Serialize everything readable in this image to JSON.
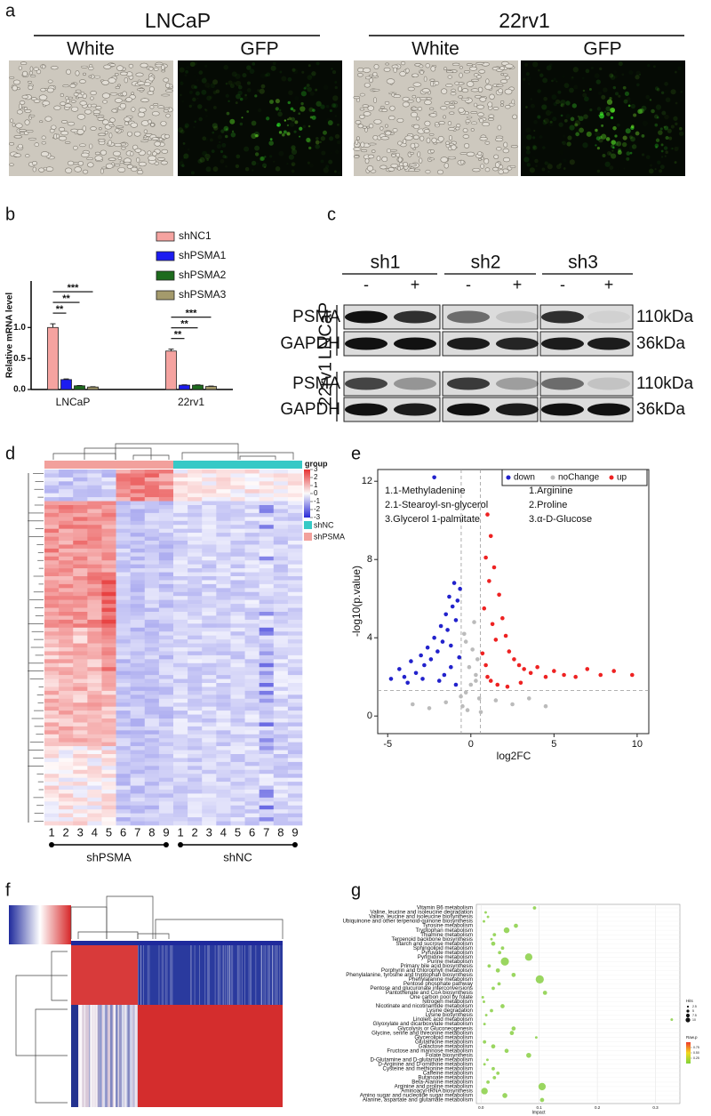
{
  "panels": {
    "a": {
      "letter": "a",
      "cell_lines": [
        "LNCaP",
        "22rv1"
      ],
      "channels": [
        "White",
        "GFP",
        "White",
        "GFP"
      ]
    },
    "c": {
      "letter": "c",
      "groups": [
        "sh1",
        "sh2",
        "sh3"
      ],
      "treatments": [
        "-",
        "+",
        "-",
        "+",
        "-",
        "+"
      ],
      "proteins": [
        "PSMA",
        "GAPDH",
        "PSMA",
        "GAPDH"
      ],
      "cell_lines": [
        "LNCaP",
        "22rv1"
      ],
      "sizes": [
        "110kDa",
        "36kDa",
        "110kDa",
        "36kDa"
      ]
    },
    "d": {
      "letter": "d",
      "legend_title": "group",
      "legend_ticks": [
        3,
        2,
        1,
        0,
        -1,
        -2,
        -3
      ],
      "groups": [
        {
          "name": "shNC",
          "color": "#36c9c6"
        },
        {
          "name": "shPSMA",
          "color": "#f2a09c"
        }
      ],
      "column_groups": [
        {
          "name": "shPSMA",
          "columns": [
            1,
            2,
            3,
            4,
            5,
            6,
            7,
            8,
            9
          ]
        },
        {
          "name": "shNC",
          "columns": [
            1,
            2,
            3,
            4,
            5,
            6,
            7,
            8,
            9
          ]
        }
      ]
    },
    "f": {
      "letter": "f"
    }
  },
  "chart_data": [
    {
      "type": "bar",
      "panel_label": "b",
      "ylabel": "Relative mRNA level",
      "categories": [
        "LNCaP",
        "22rv1"
      ],
      "series": [
        {
          "name": "shNC1",
          "color": "#f5a3a0",
          "values": [
            1.0,
            0.62
          ],
          "errors": [
            0.06,
            0.03
          ]
        },
        {
          "name": "shPSMA1",
          "color": "#1c1cf0",
          "values": [
            0.16,
            0.07
          ],
          "errors": [
            0.01,
            0.005
          ]
        },
        {
          "name": "shPSMA2",
          "color": "#1d6b1d",
          "values": [
            0.06,
            0.07
          ],
          "errors": [
            0.005,
            0.005
          ]
        },
        {
          "name": "shPSMA3",
          "color": "#a49a6c",
          "values": [
            0.04,
            0.05
          ],
          "errors": [
            0.005,
            0.005
          ]
        }
      ],
      "significance": [
        [
          "**",
          "**",
          "***"
        ],
        [
          "**",
          "**",
          "***"
        ]
      ],
      "ylim": [
        0,
        1.75
      ],
      "yticks": [
        {
          "value": 0,
          "label": "0.0"
        },
        0.5,
        {
          "value": 1,
          "label": "1.0"
        }
      ]
    },
    {
      "type": "scatter",
      "panel_label": "e",
      "xlabel": "log2FC",
      "ylabel": "-log10(p.value)",
      "xlim": [
        -5.6,
        10.7
      ],
      "ylim": [
        -0.9,
        12.6
      ],
      "xticks": [
        -5,
        0,
        5,
        10
      ],
      "yticks": [
        0,
        4,
        8,
        12
      ],
      "cutoff_x": [
        -0.58,
        0.58
      ],
      "cutoff_y": 1.3,
      "annotations_left": [
        "1.1-Methyladenine",
        "2.1-Stearoyl-sn-glycerol",
        "3.Glycerol 1-palmitate"
      ],
      "annotations_right": [
        "1.Arginine",
        "2.Proline",
        "3.α-D-Glucose"
      ],
      "series": [
        {
          "name": "down",
          "color": "#2222cc",
          "x": [
            -4.8,
            -4.3,
            -4.0,
            -3.6,
            -3.3,
            -3.0,
            -2.8,
            -2.6,
            -2.4,
            -2.2,
            -2.0,
            -1.8,
            -1.7,
            -1.5,
            -1.4,
            -1.3,
            -1.2,
            -1.1,
            -1.0,
            -0.9,
            -0.8,
            -0.7,
            -0.65,
            -2.2,
            -1.6,
            -1.2,
            -0.9,
            -3.8,
            -2.9,
            -1.9
          ],
          "y": [
            1.9,
            2.4,
            2.0,
            2.8,
            2.2,
            3.1,
            2.6,
            3.5,
            2.9,
            4.0,
            3.3,
            4.6,
            3.8,
            5.2,
            4.4,
            6.1,
            3.6,
            5.6,
            6.8,
            4.9,
            5.9,
            3.0,
            6.5,
            12.2,
            2.1,
            2.5,
            1.6,
            1.7,
            1.9,
            1.8
          ]
        },
        {
          "name": "noChange",
          "color": "#bbbbbb",
          "x": [
            -0.5,
            -0.3,
            -0.1,
            0.1,
            0.3,
            0.5,
            -0.4,
            0.2,
            0.4,
            -0.2,
            1.5,
            2.5,
            -1.5,
            -2.5,
            3.5,
            -0.6,
            0.6,
            0,
            -0.3,
            0.3,
            4.5,
            -3.5
          ],
          "y": [
            0.5,
            1.2,
            2.5,
            3.4,
            1.8,
            0.9,
            4.2,
            4.8,
            2.9,
            0.3,
            0.8,
            0.6,
            0.7,
            0.4,
            0.9,
            1.0,
            0.2,
            1.6,
            3.8,
            2.1,
            0.5,
            0.6
          ]
        },
        {
          "name": "up",
          "color": "#ee2222",
          "x": [
            0.7,
            0.8,
            0.9,
            1.0,
            1.1,
            1.2,
            1.3,
            1.4,
            1.5,
            1.7,
            1.9,
            2.1,
            2.3,
            2.6,
            2.9,
            3.2,
            3.6,
            4.0,
            4.5,
            5.0,
            5.6,
            6.3,
            7.0,
            7.8,
            8.6,
            9.7,
            1.0,
            1.6,
            2.2,
            0.9,
            1.2,
            3.0
          ],
          "y": [
            3.2,
            5.5,
            8.1,
            10.3,
            6.9,
            9.2,
            4.7,
            7.6,
            3.9,
            6.2,
            5.0,
            4.1,
            3.3,
            2.9,
            2.6,
            2.4,
            2.2,
            2.5,
            2.0,
            2.3,
            2.1,
            2.0,
            2.4,
            2.1,
            2.3,
            2.1,
            2.0,
            1.6,
            1.5,
            2.6,
            1.8,
            1.7
          ]
        }
      ]
    },
    {
      "type": "dot",
      "panel_label": "g",
      "xlabel": "Impact",
      "color": "#8fd14f",
      "categories": [
        "Vitamin B6 metabolism",
        "Valine, leucine and isoleucine degradation",
        "Valine, leucine and isoleucine biosynthesis",
        "Ubiquinone  and other terpenoid-quinone biosynthesis",
        "Tyrosine metabolism",
        "Tryptophan metabolism",
        "Thiamine metabolism",
        "Terpenoid backbone biosynthesis",
        "Starch and sucrose metabolism",
        "Sphingolipid metabolism",
        "Pyruvate metabolism",
        "Pyrimidine metabolism",
        "Purine metabolism",
        "Primary bile acid biosynthesis",
        "Porphyrin and chlorophyll metabolism",
        "Phenylalanine, tyrosine and tryptophan biosynthesis",
        "Phenylalanine metabolism",
        "Pentose phosphate pathway",
        "Pentose and glucuronate interconversions",
        "Pantothenate and CoA biosynthesis",
        "One carbon pool by folate",
        "Nitrogen metabolism",
        "Nicotinate and nicotinamide metabolism",
        "Lysine degradation",
        "Lysine biosynthesis",
        "Linoleic acid metabolism",
        "Glyoxylate and dicarboxylate metabolism",
        "Glycolysis or Gluconeogenesis",
        "Glycine, serine and threonine metabolism",
        "Glycerolipid metabolism",
        "Glutathione metabolism",
        "Galactose metabolism",
        "Fructose and mannose metabolism",
        "Folate biosynthesis",
        "D-Glutamine and D-glutamate metabolism",
        "D-Arginine and D-ornithine metabolism",
        "Cysteine and methionine metabolism",
        "Caffeine metabolism",
        "Butanoate metabolism",
        "Beta-Alanine metabolism",
        "Arginine and proline metabolism",
        "Aminoacyl-tRNA biosynthesis",
        "Amino sugar and nucleotide sugar metabolism",
        "Alanine, aspartate and glutamate metabolism"
      ],
      "values": [
        0.092,
        0.008,
        0.012,
        0.005,
        0.06,
        0.044,
        0.023,
        0.018,
        0.021,
        0.037,
        0.032,
        0.082,
        0.041,
        0.014,
        0.029,
        0.056,
        0.101,
        0.031,
        0.021,
        0.11,
        0.003,
        0.005,
        0.037,
        0.018,
        0.009,
        0.328,
        0.006,
        0.056,
        0.053,
        0.095,
        0.006,
        0.021,
        0.044,
        0.082,
        0.011,
        0.006,
        0.021,
        0.029,
        0.023,
        0.012,
        0.105,
        0.006,
        0.041,
        0.105
      ],
      "sizes": [
        2,
        1,
        1,
        1,
        3,
        5,
        2,
        1,
        3,
        2,
        2,
        7,
        8,
        2,
        3,
        3,
        8,
        2,
        2,
        3,
        1,
        1,
        3,
        2,
        1,
        1,
        1,
        3,
        3,
        1,
        2,
        3,
        3,
        4,
        1,
        1,
        2,
        2,
        2,
        2,
        7,
        6,
        4,
        3
      ],
      "xlim": [
        -0.008,
        0.342
      ],
      "xticks": [
        {
          "value": 0,
          "label": "0.0"
        },
        0.1,
        0.2,
        0.3
      ],
      "size_legend_title": "Hits",
      "size_legend": [
        2.5,
        5,
        7.5,
        10
      ],
      "color_legend_title": "Raw.p",
      "color_legend": [
        0.75,
        {
          "value": 0.5,
          "label": "0.50"
        },
        0.25
      ]
    }
  ]
}
